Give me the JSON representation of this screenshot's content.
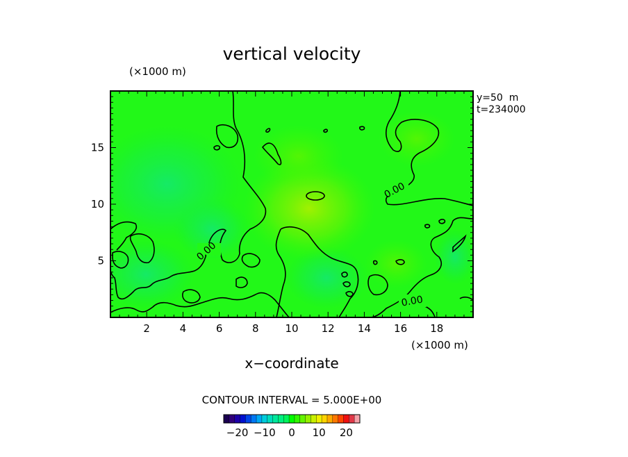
{
  "chart_data": {
    "type": "heatmap",
    "title": "vertical velocity",
    "xlabel": "x−coordinate",
    "x_unit": "(×1000 m)",
    "y_unit": "(×1000 m)",
    "x_ticks": [
      2,
      4,
      6,
      8,
      10,
      12,
      14,
      16,
      18
    ],
    "y_ticks": [
      5,
      10,
      15
    ],
    "xlim": [
      0,
      20
    ],
    "ylim": [
      0,
      20
    ],
    "info": [
      "y=50  m",
      "t=234000"
    ],
    "contour_interval_text": "CONTOUR INTERVAL = 5.000E+00",
    "contour_labels": [
      "0.00",
      "0.00",
      "0.00"
    ],
    "contour_level": 0.0,
    "colorbar": {
      "min": -25,
      "max": 25,
      "tick_values": [
        -20,
        -10,
        0,
        10,
        20
      ],
      "tick_labels": [
        "−20",
        "−10",
        "0",
        "10",
        "20"
      ],
      "colors": [
        "#1a0050",
        "#30007a",
        "#1c00a8",
        "#0010d0",
        "#0044e8",
        "#0078f4",
        "#00a8f4",
        "#00ccdc",
        "#00dcbc",
        "#00e89c",
        "#00f080",
        "#00f45c",
        "#00ff00",
        "#30f800",
        "#64f400",
        "#96f000",
        "#c8f000",
        "#f0f000",
        "#ffd400",
        "#ffaa00",
        "#ff7800",
        "#ff4400",
        "#f01010",
        "#e03848",
        "#f4a0a8"
      ]
    },
    "field_range_estimate": [
      -4,
      4
    ]
  }
}
